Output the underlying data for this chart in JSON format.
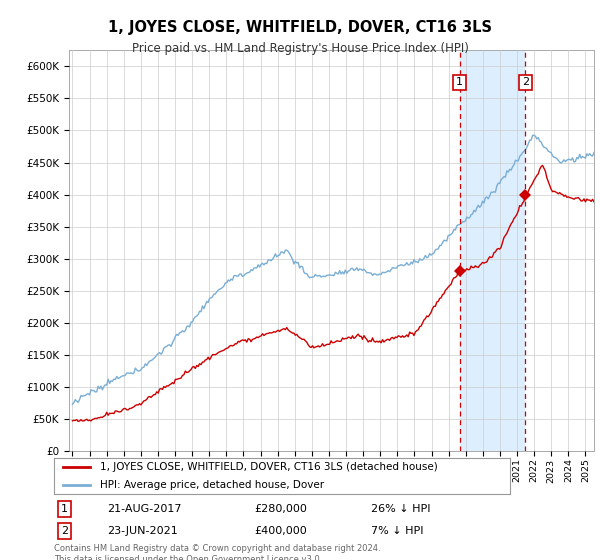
{
  "title": "1, JOYES CLOSE, WHITFIELD, DOVER, CT16 3LS",
  "subtitle": "Price paid vs. HM Land Registry's House Price Index (HPI)",
  "ylabel_ticks": [
    "£0",
    "£50K",
    "£100K",
    "£150K",
    "£200K",
    "£250K",
    "£300K",
    "£350K",
    "£400K",
    "£450K",
    "£500K",
    "£550K",
    "£600K"
  ],
  "ytick_vals": [
    0,
    50000,
    100000,
    150000,
    200000,
    250000,
    300000,
    350000,
    400000,
    450000,
    500000,
    550000,
    600000
  ],
  "ylim": [
    0,
    625000
  ],
  "xlim_start": 1994.8,
  "xlim_end": 2025.5,
  "hpi_color": "#7aaed4",
  "price_color": "#cc0000",
  "shade_color": "#ddeeff",
  "purchase1_date": 2017.64,
  "purchase1_price": 280000,
  "purchase2_date": 2021.48,
  "purchase2_price": 400000,
  "legend_label1": "1, JOYES CLOSE, WHITFIELD, DOVER, CT16 3LS (detached house)",
  "legend_label2": "HPI: Average price, detached house, Dover",
  "footer": "Contains HM Land Registry data © Crown copyright and database right 2024.\nThis data is licensed under the Open Government Licence v3.0.",
  "background_color": "#ffffff",
  "grid_color": "#cccccc"
}
